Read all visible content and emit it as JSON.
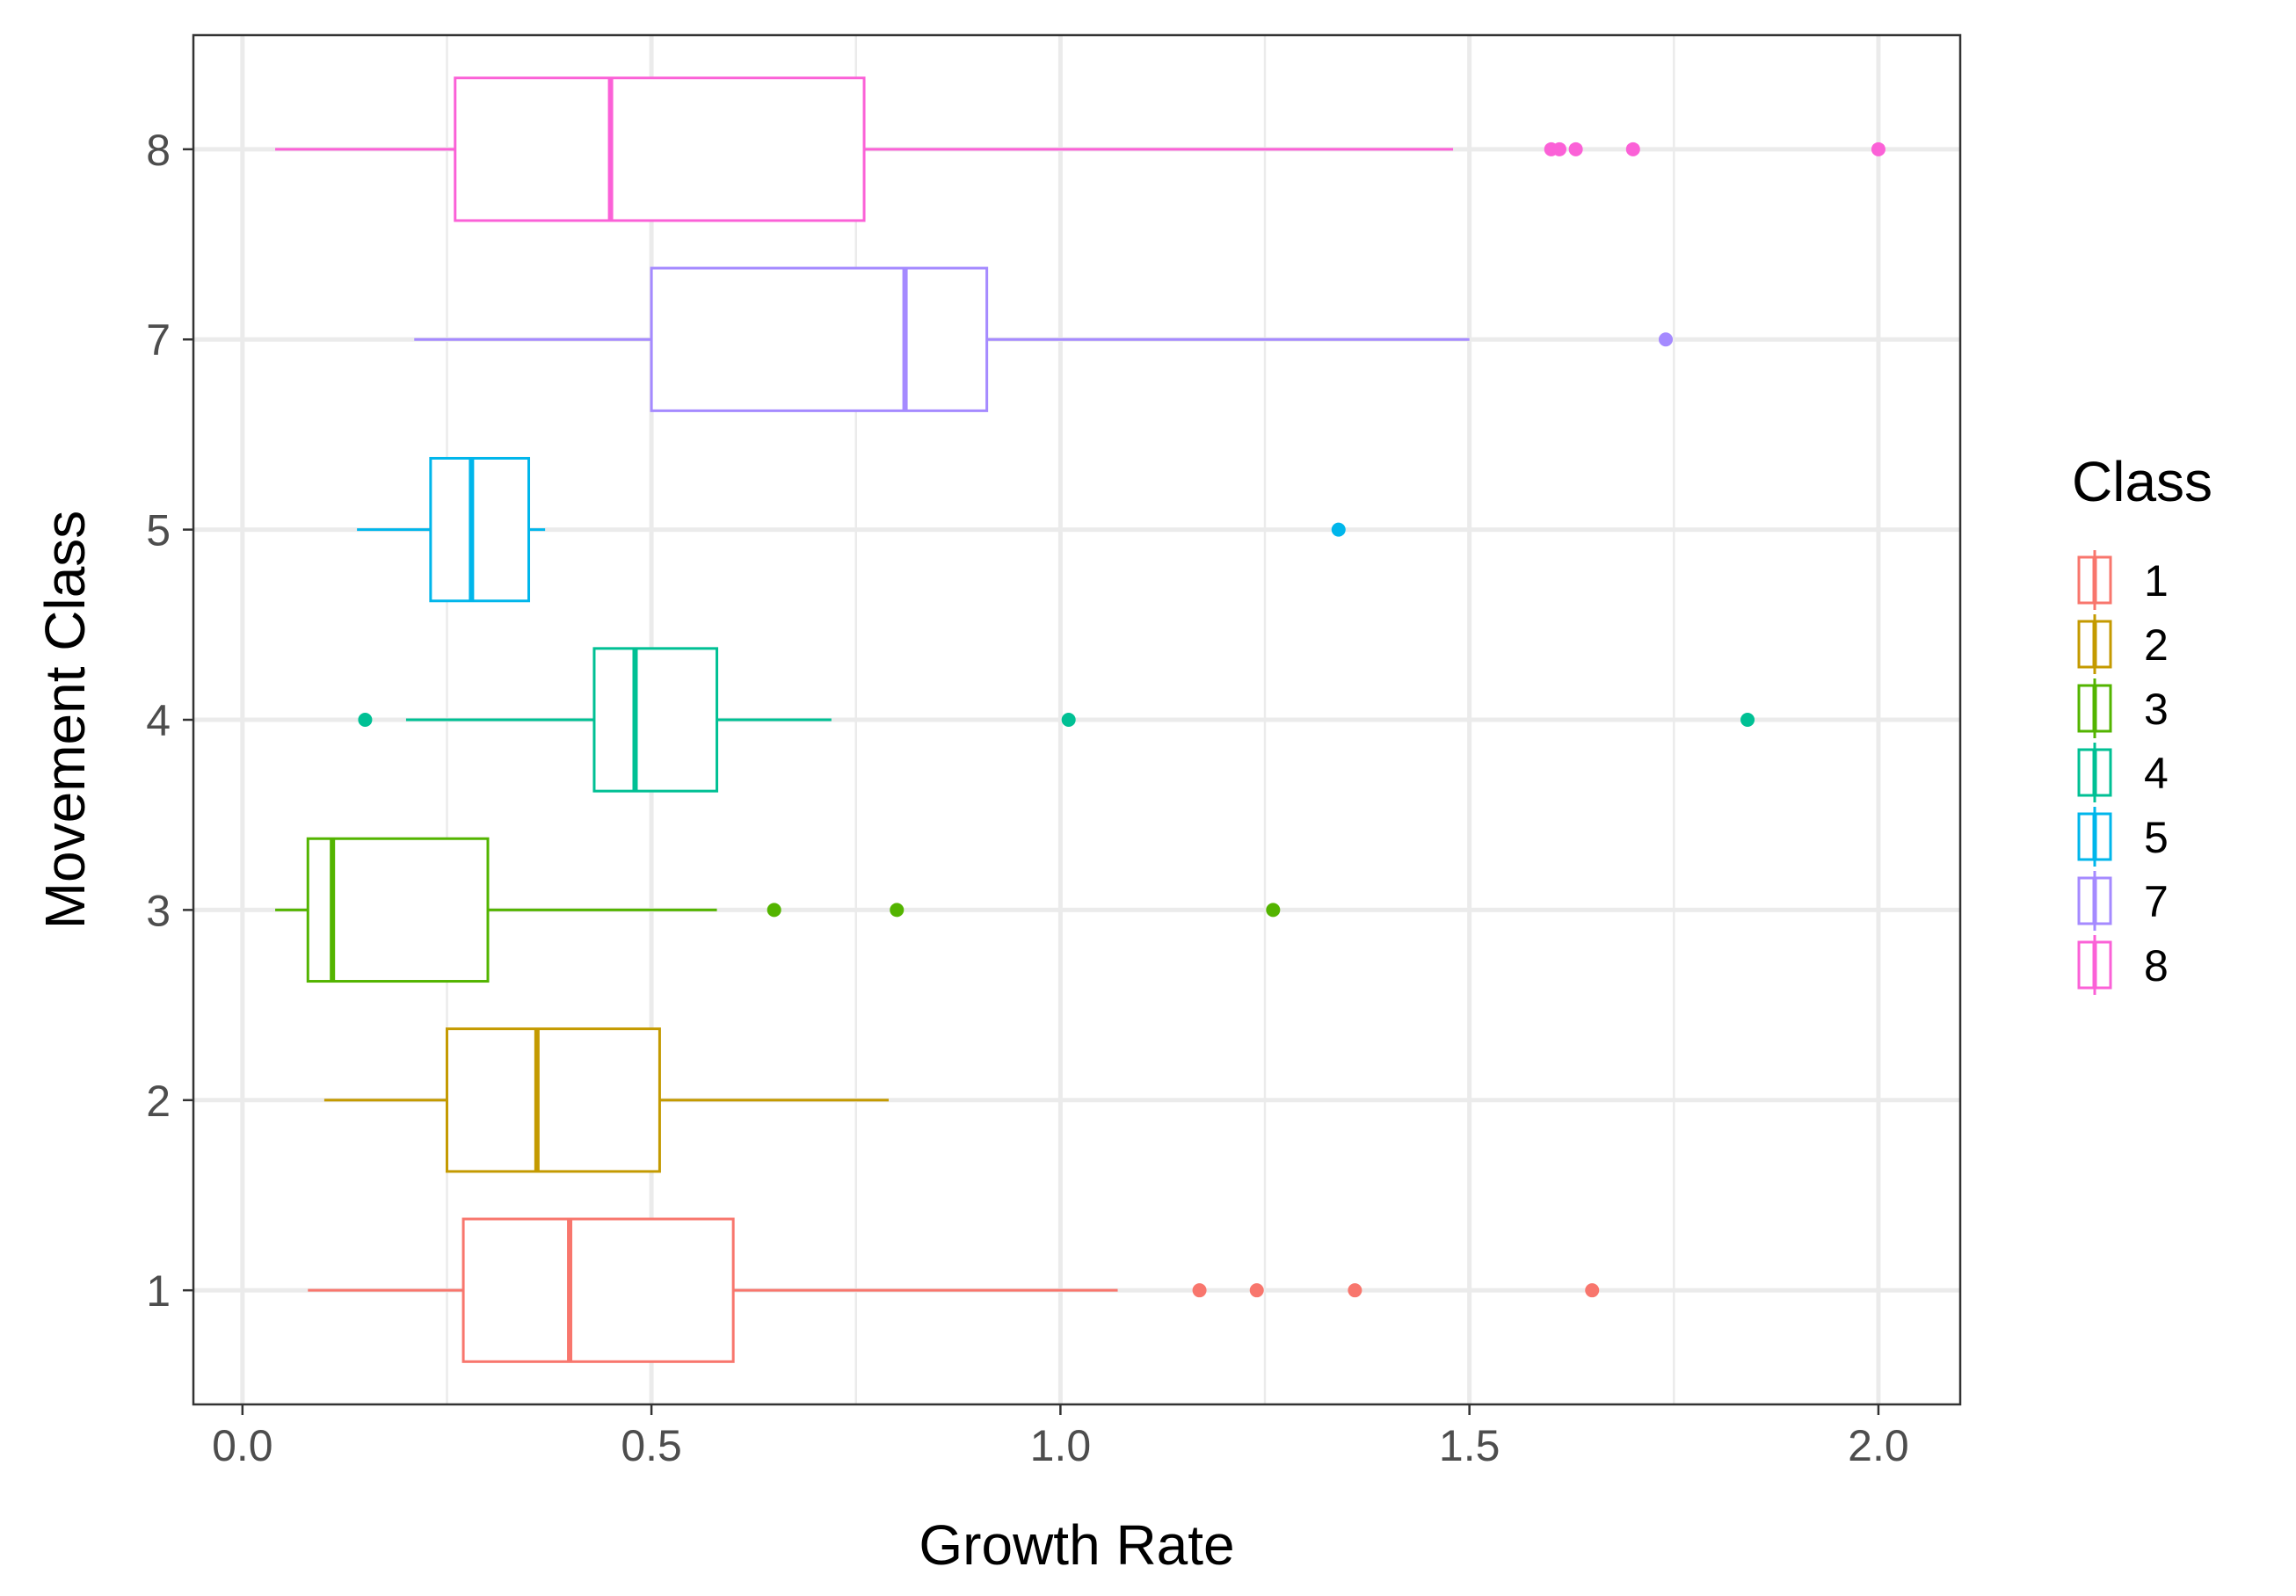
{
  "chart_data": {
    "type": "boxplot",
    "orientation": "horizontal",
    "xlabel": "Growth Rate",
    "ylabel": "Movement Class",
    "xlim": [
      -0.06,
      2.1
    ],
    "xticks": [
      0.0,
      0.5,
      1.0,
      1.5,
      2.0
    ],
    "xtick_labels": [
      "0.0",
      "0.5",
      "1.0",
      "1.5",
      "2.0"
    ],
    "grid": true,
    "theme": "bw",
    "legend": {
      "title": "Class",
      "placement": "right"
    },
    "categories": [
      "1",
      "2",
      "3",
      "4",
      "5",
      "7",
      "8"
    ],
    "series": [
      {
        "name": "1",
        "color": "#F8766D",
        "whisker_low": 0.08,
        "q1": 0.27,
        "median": 0.4,
        "q3": 0.6,
        "whisker_high": 1.07,
        "outliers": [
          1.17,
          1.24,
          1.36,
          1.65
        ]
      },
      {
        "name": "2",
        "color": "#C49A00",
        "whisker_low": 0.1,
        "q1": 0.25,
        "median": 0.36,
        "q3": 0.51,
        "whisker_high": 0.79,
        "outliers": []
      },
      {
        "name": "3",
        "color": "#53B400",
        "whisker_low": 0.04,
        "q1": 0.08,
        "median": 0.11,
        "q3": 0.3,
        "whisker_high": 0.58,
        "outliers": [
          0.65,
          0.8,
          1.26
        ]
      },
      {
        "name": "4",
        "color": "#00C094",
        "whisker_low": 0.2,
        "q1": 0.43,
        "median": 0.48,
        "q3": 0.58,
        "whisker_high": 0.72,
        "outliers": [
          0.15,
          1.01,
          1.84
        ]
      },
      {
        "name": "5",
        "color": "#00B6EB",
        "whisker_low": 0.14,
        "q1": 0.23,
        "median": 0.28,
        "q3": 0.35,
        "whisker_high": 0.37,
        "outliers": [
          1.34
        ]
      },
      {
        "name": "7",
        "color": "#A58AFF",
        "whisker_low": 0.21,
        "q1": 0.5,
        "median": 0.81,
        "q3": 0.91,
        "whisker_high": 1.5,
        "outliers": [
          1.74
        ]
      },
      {
        "name": "8",
        "color": "#FB61D7",
        "whisker_low": 0.04,
        "q1": 0.26,
        "median": 0.45,
        "q3": 0.76,
        "whisker_high": 1.48,
        "outliers": [
          1.6,
          1.61,
          1.63,
          1.7,
          2.0
        ]
      }
    ]
  }
}
